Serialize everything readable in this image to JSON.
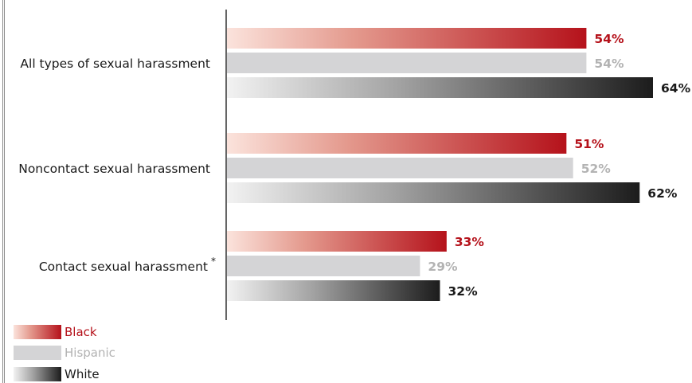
{
  "chart_data": {
    "type": "bar",
    "orientation": "horizontal",
    "categories": [
      "All types of sexual harassment",
      "Noncontact sexual harassment",
      "Contact sexual harassment"
    ],
    "category_markers": [
      "",
      "",
      "*"
    ],
    "series": [
      {
        "name": "Black",
        "values": [
          54,
          51,
          33
        ],
        "labels": [
          "54%",
          "51%",
          "33%"
        ],
        "color": "#b5121b"
      },
      {
        "name": "Hispanic",
        "values": [
          54,
          52,
          29
        ],
        "labels": [
          "54%",
          "52%",
          "29%"
        ],
        "color": "#b3b3b3"
      },
      {
        "name": "White",
        "values": [
          64,
          62,
          32
        ],
        "labels": [
          "64%",
          "62%",
          "32%"
        ],
        "color": "#1a1a1a"
      }
    ],
    "xlim": [
      0,
      64
    ],
    "grid": false,
    "legend_position": "bottom-left"
  }
}
